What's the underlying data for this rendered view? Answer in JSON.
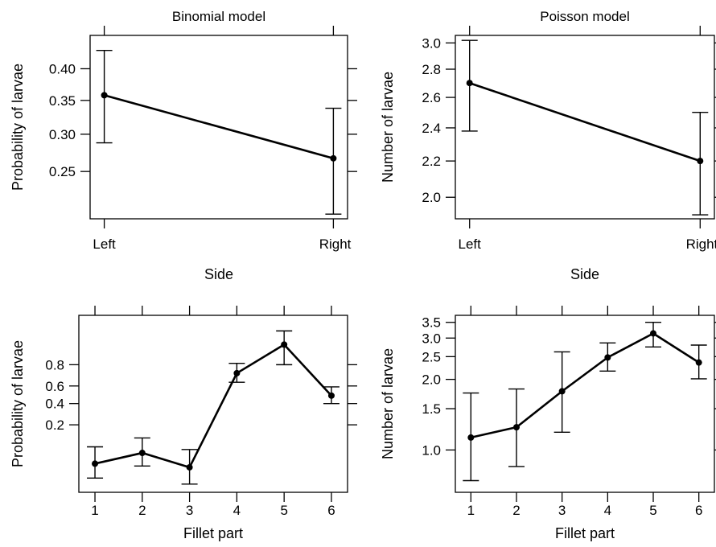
{
  "chart_data": [
    {
      "type": "line",
      "title": "Binomial model",
      "xlabel": "Side",
      "ylabel": "Probability of larvae",
      "y_scale": "logit",
      "categories": [
        "Left",
        "Right"
      ],
      "values": [
        0.358,
        0.267
      ],
      "lower": [
        0.288,
        0.2
      ],
      "upper": [
        0.43,
        0.338
      ],
      "y_ticks": [
        0.25,
        0.3,
        0.35,
        0.4
      ],
      "y_tick_labels": [
        "0.25",
        "0.30",
        "0.35",
        "0.40"
      ],
      "ylim": [
        0.195,
        0.455
      ],
      "grid": false
    },
    {
      "type": "line",
      "title": "Poisson model",
      "xlabel": "Side",
      "ylabel": "Number of larvae",
      "y_scale": "log",
      "categories": [
        "Left",
        "Right"
      ],
      "values": [
        2.7,
        2.2
      ],
      "lower": [
        2.38,
        1.91
      ],
      "upper": [
        3.02,
        2.5
      ],
      "y_ticks": [
        2.0,
        2.2,
        2.4,
        2.6,
        2.8,
        3.0
      ],
      "y_tick_labels": [
        "2.0",
        "2.2",
        "2.4",
        "2.6",
        "2.8",
        "3.0"
      ],
      "ylim": [
        1.89,
        3.06
      ],
      "grid": false
    },
    {
      "type": "line",
      "title": "",
      "xlabel": "Fillet part",
      "ylabel": "Probability of larvae",
      "y_scale": "logit",
      "categories": [
        "1",
        "2",
        "3",
        "4",
        "5",
        "6"
      ],
      "values": [
        0.04,
        0.064,
        0.034,
        0.73,
        0.91,
        0.49
      ],
      "lower": [
        0.021,
        0.036,
        0.016,
        0.64,
        0.8,
        0.4
      ],
      "upper": [
        0.083,
        0.12,
        0.074,
        0.81,
        0.95,
        0.59
      ],
      "y_ticks": [
        0.2,
        0.4,
        0.6,
        0.8
      ],
      "y_tick_labels": [
        "0.2",
        "0.4",
        "0.6",
        "0.8"
      ],
      "ylim": [
        0.011,
        0.975
      ],
      "grid": false
    },
    {
      "type": "line",
      "title": "",
      "xlabel": "Fillet part",
      "ylabel": "Number of larvae",
      "y_scale": "log",
      "categories": [
        "1",
        "2",
        "3",
        "4",
        "5",
        "6"
      ],
      "values": [
        1.13,
        1.25,
        1.78,
        2.48,
        3.14,
        2.36
      ],
      "lower": [
        0.74,
        0.85,
        1.19,
        2.17,
        2.75,
        2.01
      ],
      "upper": [
        1.75,
        1.82,
        2.62,
        2.86,
        3.5,
        2.8
      ],
      "y_ticks": [
        1.0,
        1.5,
        2.0,
        2.5,
        3.0,
        3.5
      ],
      "y_tick_labels": [
        "1.0",
        "1.5",
        "2.0",
        "2.5",
        "3.0",
        "3.5"
      ],
      "ylim": [
        0.66,
        3.75
      ],
      "grid": false
    }
  ]
}
